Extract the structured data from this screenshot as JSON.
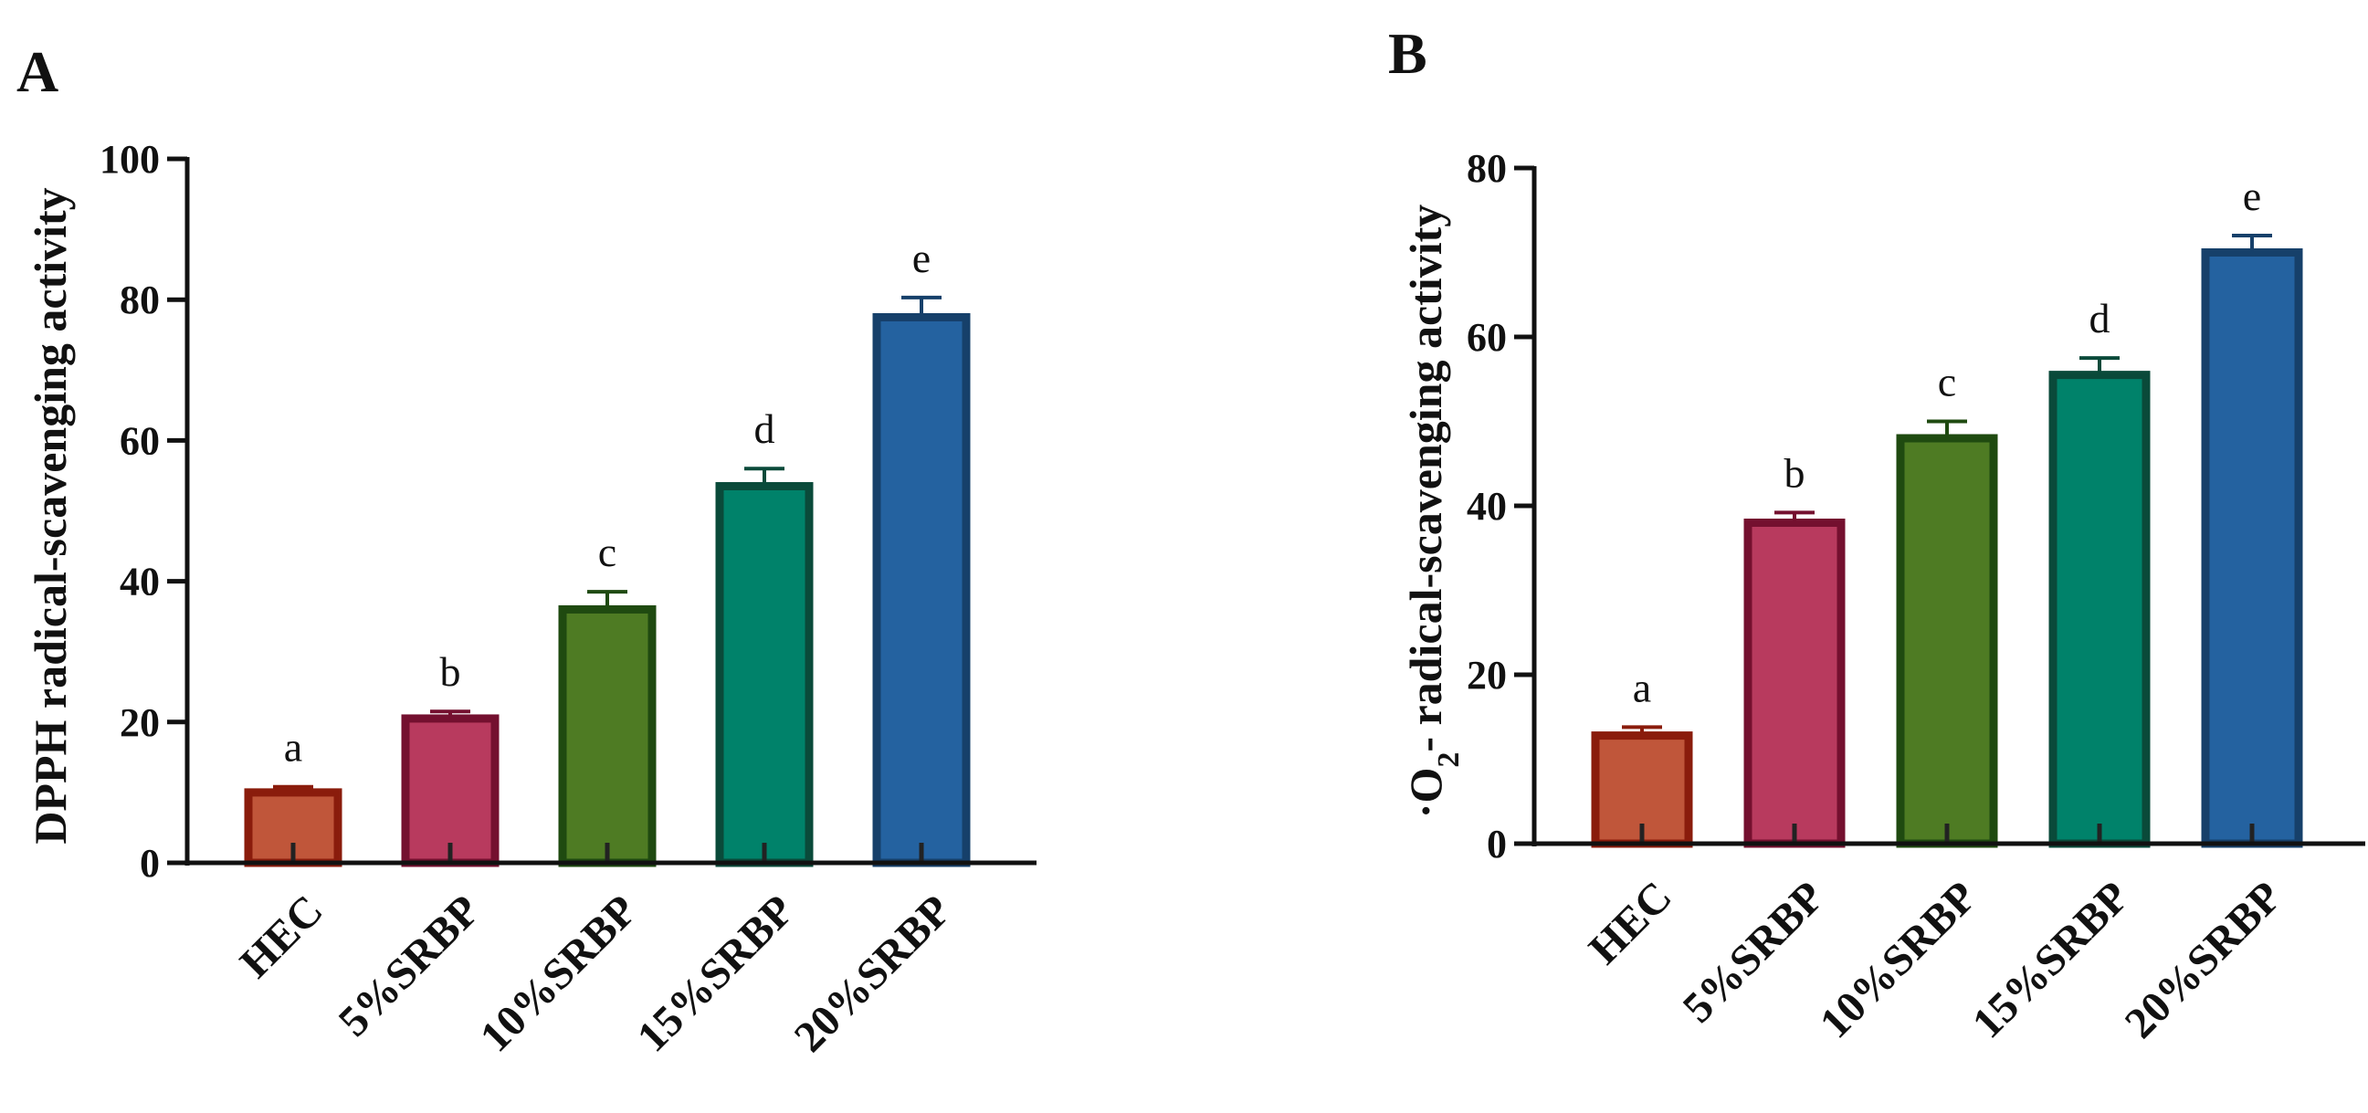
{
  "figure": {
    "panels": [
      "A",
      "B"
    ]
  },
  "chart_data": [
    {
      "panel": "A",
      "type": "bar",
      "title": "",
      "xlabel": "",
      "ylabel": "DPPH radical-scavenging activity",
      "ylim": [
        0,
        100
      ],
      "yticks": [
        0,
        20,
        40,
        60,
        80,
        100
      ],
      "grid": false,
      "categories": [
        "HEC",
        "5%SRBP",
        "10%SRBP",
        "15%SRBP",
        "20%SRBP"
      ],
      "values": [
        10,
        20.5,
        36,
        53.5,
        77.5
      ],
      "errors": [
        0.8,
        1.0,
        2.5,
        2.5,
        2.8
      ],
      "significance": [
        "a",
        "b",
        "c",
        "d",
        "e"
      ],
      "colors": {
        "fill": [
          "#c0563a",
          "#b83a5e",
          "#4e7b23",
          "#00826a",
          "#2462a0"
        ],
        "border": [
          "#8a1c0c",
          "#74102f",
          "#1f4a10",
          "#0a4a3a",
          "#16406a"
        ]
      }
    },
    {
      "panel": "B",
      "type": "bar",
      "title": "",
      "xlabel": "",
      "ylabel_parts": {
        "pre": "·O",
        "sub": "2",
        "post": "- radical-scavenging activity"
      },
      "ylim": [
        0,
        80
      ],
      "yticks": [
        0,
        20,
        40,
        60,
        80
      ],
      "grid": false,
      "categories": [
        "HEC",
        "5%SRBP",
        "10%SRBP",
        "15%SRBP",
        "20%SRBP"
      ],
      "values": [
        12.8,
        38,
        48,
        55.5,
        70
      ],
      "errors": [
        1.0,
        1.2,
        2.0,
        2.0,
        2.0
      ],
      "significance": [
        "a",
        "b",
        "c",
        "d",
        "e"
      ],
      "colors": {
        "fill": [
          "#c0563a",
          "#b83a5e",
          "#4e7b23",
          "#00826a",
          "#2462a0"
        ],
        "border": [
          "#8a1c0c",
          "#74102f",
          "#1f4a10",
          "#0a4a3a",
          "#16406a"
        ]
      }
    }
  ]
}
